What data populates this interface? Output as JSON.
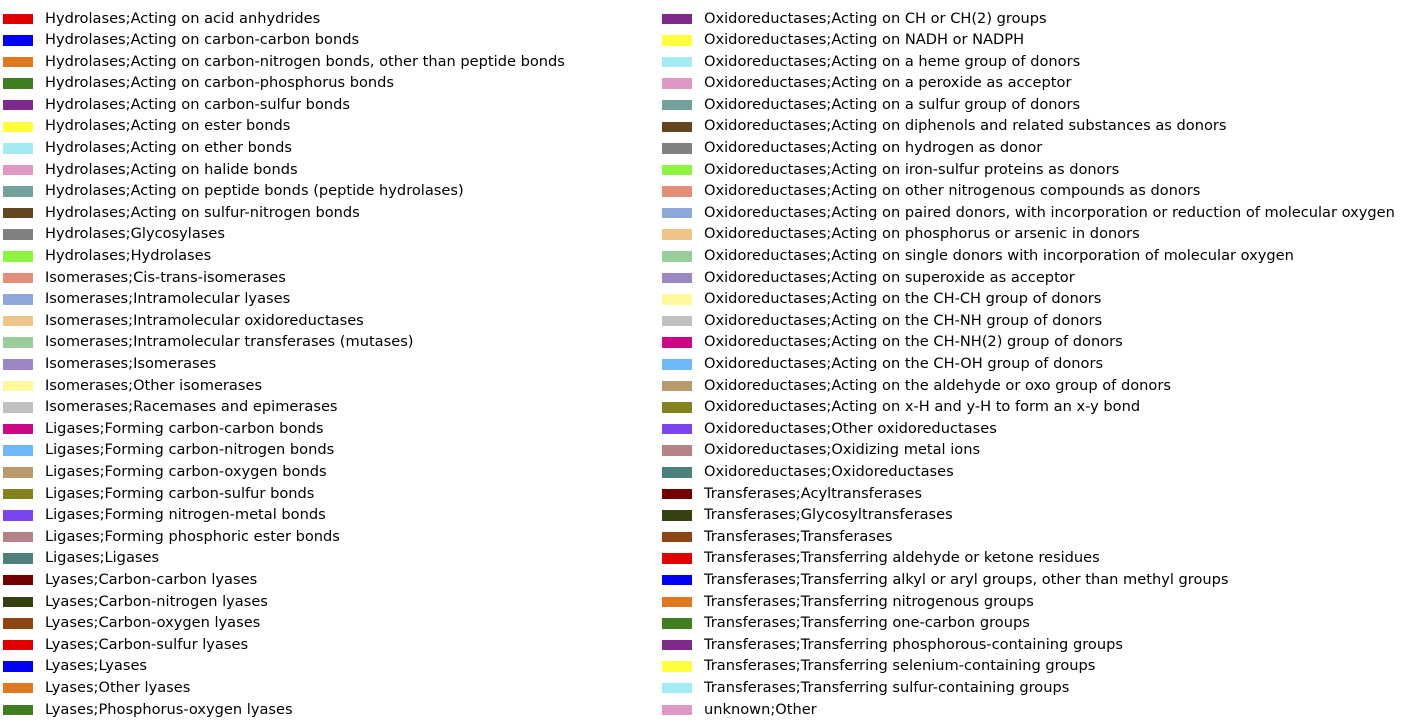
{
  "chart_data": {
    "type": "bar",
    "legend_placement": "full-figure, two columns",
    "legend": {
      "columns": [
        [
          {
            "label": "Hydrolases;Acting on acid anhydrides",
            "color": "#e00000"
          },
          {
            "label": "Hydrolases;Acting on carbon-carbon bonds",
            "color": "#0000f5"
          },
          {
            "label": "Hydrolases;Acting on carbon-nitrogen bonds, other than peptide bonds",
            "color": "#e07820"
          },
          {
            "label": "Hydrolases;Acting on carbon-phosphorus bonds",
            "color": "#3f7f1f"
          },
          {
            "label": "Hydrolases;Acting on carbon-sulfur bonds",
            "color": "#7d2b8a"
          },
          {
            "label": "Hydrolases;Acting on ester bonds",
            "color": "#ffff3d"
          },
          {
            "label": "Hydrolases;Acting on ether bonds",
            "color": "#a4eaf2"
          },
          {
            "label": "Hydrolases;Acting on halide bonds",
            "color": "#de98c3"
          },
          {
            "label": "Hydrolases;Acting on peptide bonds (peptide hydrolases)",
            "color": "#73a19b"
          },
          {
            "label": "Hydrolases;Acting on sulfur-nitrogen bonds",
            "color": "#654420"
          },
          {
            "label": "Hydrolases;Glycosylases",
            "color": "#808080"
          },
          {
            "label": "Hydrolases;Hydrolases",
            "color": "#8ef440"
          },
          {
            "label": "Isomerases;Cis-trans-isomerases",
            "color": "#e38e78"
          },
          {
            "label": "Isomerases;Intramolecular lyases",
            "color": "#8ea8da"
          },
          {
            "label": "Isomerases;Intramolecular oxidoreductases",
            "color": "#efc488"
          },
          {
            "label": "Isomerases;Intramolecular transferases (mutases)",
            "color": "#99cd9c"
          },
          {
            "label": "Isomerases;Isomerases",
            "color": "#9c86c4"
          },
          {
            "label": "Isomerases;Other isomerases",
            "color": "#fef99d"
          },
          {
            "label": "Isomerases;Racemases and epimerases",
            "color": "#c0c0c0"
          },
          {
            "label": "Ligases;Forming carbon-carbon bonds",
            "color": "#cb0785"
          },
          {
            "label": "Ligases;Forming carbon-nitrogen bonds",
            "color": "#6cb8f8"
          },
          {
            "label": "Ligases;Forming carbon-oxygen bonds",
            "color": "#b7996c"
          },
          {
            "label": "Ligases;Forming carbon-sulfur bonds",
            "color": "#858320"
          },
          {
            "label": "Ligases;Forming nitrogen-metal bonds",
            "color": "#7a44ef"
          },
          {
            "label": "Ligases;Forming phosphoric ester bonds",
            "color": "#b48287"
          },
          {
            "label": "Ligases;Ligases",
            "color": "#4b807d"
          },
          {
            "label": "Lyases;Carbon-carbon lyases",
            "color": "#740000"
          },
          {
            "label": "Lyases;Carbon-nitrogen lyases",
            "color": "#344110"
          },
          {
            "label": "Lyases;Carbon-oxygen lyases",
            "color": "#8e4514"
          },
          {
            "label": "Lyases;Carbon-sulfur lyases",
            "color": "#e00000"
          },
          {
            "label": "Lyases;Lyases",
            "color": "#0000f5"
          },
          {
            "label": "Lyases;Other lyases",
            "color": "#e07820"
          },
          {
            "label": "Lyases;Phosphorus-oxygen lyases",
            "color": "#3f7f1f"
          }
        ],
        [
          {
            "label": "Oxidoreductases;Acting on CH or CH(2) groups",
            "color": "#7d2b8a"
          },
          {
            "label": "Oxidoreductases;Acting on NADH or NADPH",
            "color": "#ffff3d"
          },
          {
            "label": "Oxidoreductases;Acting on a heme group of donors",
            "color": "#a4eaf2"
          },
          {
            "label": "Oxidoreductases;Acting on a peroxide as acceptor",
            "color": "#de98c3"
          },
          {
            "label": "Oxidoreductases;Acting on a sulfur group of donors",
            "color": "#73a19b"
          },
          {
            "label": "Oxidoreductases;Acting on diphenols and related substances as donors",
            "color": "#654420"
          },
          {
            "label": "Oxidoreductases;Acting on hydrogen as donor",
            "color": "#808080"
          },
          {
            "label": "Oxidoreductases;Acting on iron-sulfur proteins as donors",
            "color": "#8ef440"
          },
          {
            "label": "Oxidoreductases;Acting on other nitrogenous compounds as donors",
            "color": "#e38e78"
          },
          {
            "label": "Oxidoreductases;Acting on paired donors, with incorporation or reduction of molecular oxygen",
            "color": "#8ea8da"
          },
          {
            "label": "Oxidoreductases;Acting on phosphorus or arsenic in donors",
            "color": "#efc488"
          },
          {
            "label": "Oxidoreductases;Acting on single donors with incorporation of molecular oxygen",
            "color": "#99cd9c"
          },
          {
            "label": "Oxidoreductases;Acting on superoxide as acceptor",
            "color": "#9c86c4"
          },
          {
            "label": "Oxidoreductases;Acting on the CH-CH group of donors",
            "color": "#fef99d"
          },
          {
            "label": "Oxidoreductases;Acting on the CH-NH group of donors",
            "color": "#c0c0c0"
          },
          {
            "label": "Oxidoreductases;Acting on the CH-NH(2) group of donors",
            "color": "#cb0785"
          },
          {
            "label": "Oxidoreductases;Acting on the CH-OH group of donors",
            "color": "#6cb8f8"
          },
          {
            "label": "Oxidoreductases;Acting on the aldehyde or oxo group of donors",
            "color": "#b7996c"
          },
          {
            "label": "Oxidoreductases;Acting on x-H and y-H to form an x-y bond",
            "color": "#858320"
          },
          {
            "label": "Oxidoreductases;Other oxidoreductases",
            "color": "#7a44ef"
          },
          {
            "label": "Oxidoreductases;Oxidizing metal ions",
            "color": "#b48287"
          },
          {
            "label": "Oxidoreductases;Oxidoreductases",
            "color": "#4b807d"
          },
          {
            "label": "Transferases;Acyltransferases",
            "color": "#740000"
          },
          {
            "label": "Transferases;Glycosyltransferases",
            "color": "#344110"
          },
          {
            "label": "Transferases;Transferases",
            "color": "#8e4514"
          },
          {
            "label": "Transferases;Transferring aldehyde or ketone residues",
            "color": "#e00000"
          },
          {
            "label": "Transferases;Transferring alkyl or aryl groups, other than methyl groups",
            "color": "#0000f5"
          },
          {
            "label": "Transferases;Transferring nitrogenous groups",
            "color": "#e07820"
          },
          {
            "label": "Transferases;Transferring one-carbon groups",
            "color": "#3f7f1f"
          },
          {
            "label": "Transferases;Transferring phosphorous-containing groups",
            "color": "#7d2b8a"
          },
          {
            "label": "Transferases;Transferring selenium-containing groups",
            "color": "#ffff3d"
          },
          {
            "label": "Transferases;Transferring sulfur-containing groups",
            "color": "#a4eaf2"
          },
          {
            "label": "unknown;Other",
            "color": "#de98c3"
          }
        ]
      ]
    }
  }
}
